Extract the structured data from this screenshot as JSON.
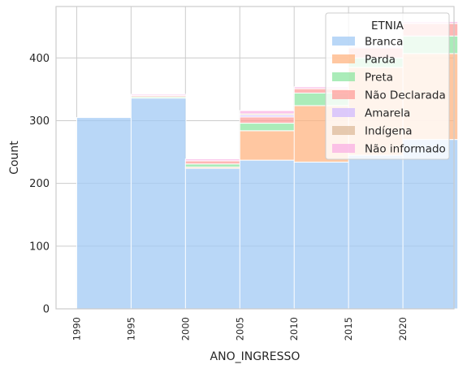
{
  "chart_data": {
    "type": "bar",
    "stacked": true,
    "bins": [
      1990,
      1995,
      2000,
      2005,
      2010,
      2015,
      2020
    ],
    "xlabel": "ANO_INGRESSO",
    "ylabel": "Count",
    "x_ticks": [
      "1990",
      "1995",
      "2000",
      "2005",
      "2010",
      "2015",
      "2020"
    ],
    "y_ticks": [
      "0",
      "100",
      "200",
      "300",
      "400"
    ],
    "ylim": [
      0,
      482
    ],
    "grid": true,
    "legend": {
      "title": "ETNIA",
      "placement": "upper-right"
    },
    "series": [
      {
        "name": "Branca",
        "color": "#a1c9f4",
        "values": [
          305,
          336,
          224,
          237,
          234,
          245,
          270
        ]
      },
      {
        "name": "Parda",
        "color": "#ffb482",
        "values": [
          0,
          0,
          2,
          47,
          90,
          140,
          137
        ]
      },
      {
        "name": "Preta",
        "color": "#8de5a1",
        "values": [
          0,
          2,
          5,
          12,
          20,
          15,
          28
        ]
      },
      {
        "name": "Não Declarada",
        "color": "#ff9f9b",
        "values": [
          0,
          2,
          5,
          10,
          7,
          16,
          20
        ]
      },
      {
        "name": "Amarela",
        "color": "#d0bbff",
        "values": [
          0,
          0,
          0,
          3,
          0,
          0,
          0
        ]
      },
      {
        "name": "Indígena",
        "color": "#debb9b",
        "values": [
          0,
          0,
          0,
          2,
          0,
          0,
          0
        ]
      },
      {
        "name": "Não informado",
        "color": "#fab0e4",
        "values": [
          0,
          2,
          3,
          5,
          3,
          2,
          3
        ]
      }
    ]
  }
}
